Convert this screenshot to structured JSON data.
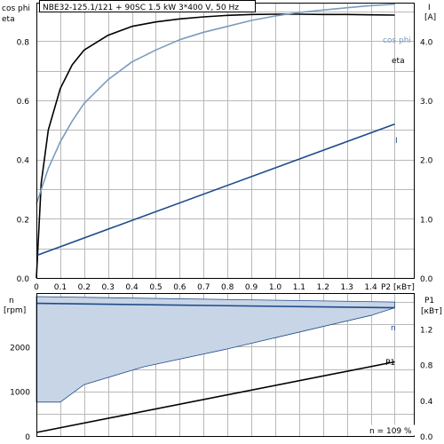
{
  "title": "NBE32-125.1/121 + 90SC   1.5 kW   3*400 V, 50 Hz",
  "colors": {
    "eta": "#000000",
    "cos_phi": "#7a9cbf",
    "current": "#1e4b8c",
    "speed_band_fill": "#c8d5e6",
    "speed_band_edge": "#1e4b8c",
    "p1": "#000000",
    "grid": "#b9b9b9"
  },
  "footer_note": "n = 109 %",
  "chart_data": [
    {
      "type": "line",
      "name": "top-panel",
      "left_axis": {
        "label_lines": [
          "cos phi",
          "eta"
        ],
        "ticks": [
          "0.0",
          "0.2",
          "0.4",
          "0.6",
          "0.8"
        ],
        "ylim": [
          0,
          0.93
        ]
      },
      "right_axis": {
        "label_lines": [
          "I",
          "[A]"
        ],
        "ticks": [
          "0.0",
          "1.0",
          "2.0",
          "3.0",
          "4.0"
        ],
        "ylim": [
          0,
          4.65
        ]
      },
      "x_axis": {
        "ticks": [
          "0",
          "0.1",
          "0.2",
          "0.3",
          "0.4",
          "0.5",
          "0.6",
          "0.7",
          "0.8",
          "0.9",
          "1.0",
          "1.1",
          "1.2",
          "1.3",
          "1.4"
        ],
        "end_label": "P2 [кВт]",
        "xlim": [
          0,
          1.58
        ]
      },
      "series": [
        {
          "name": "eta",
          "axis": "left",
          "x": [
            0,
            0.02,
            0.05,
            0.1,
            0.15,
            0.2,
            0.3,
            0.4,
            0.5,
            0.6,
            0.7,
            0.8,
            0.9,
            1.0,
            1.1,
            1.2,
            1.3,
            1.4,
            1.5
          ],
          "y": [
            0.0,
            0.32,
            0.5,
            0.64,
            0.72,
            0.77,
            0.82,
            0.85,
            0.865,
            0.875,
            0.882,
            0.887,
            0.89,
            0.891,
            0.891,
            0.89,
            0.89,
            0.889,
            0.888
          ]
        },
        {
          "name": "cos phi",
          "axis": "left",
          "x": [
            0,
            0.05,
            0.1,
            0.15,
            0.2,
            0.3,
            0.4,
            0.5,
            0.6,
            0.7,
            0.8,
            0.9,
            1.0,
            1.1,
            1.2,
            1.3,
            1.4,
            1.5
          ],
          "y": [
            0.25,
            0.37,
            0.46,
            0.53,
            0.59,
            0.67,
            0.73,
            0.77,
            0.805,
            0.83,
            0.85,
            0.87,
            0.885,
            0.897,
            0.905,
            0.913,
            0.92,
            0.925
          ]
        },
        {
          "name": "I",
          "axis": "right",
          "x": [
            0,
            1.5
          ],
          "y": [
            0.38,
            2.6
          ]
        }
      ]
    },
    {
      "type": "line",
      "name": "bottom-panel",
      "left_axis": {
        "label_lines": [
          "n",
          "[rpm]"
        ],
        "ticks": [
          "0",
          "1000",
          "2000"
        ],
        "ylim": [
          0,
          3200
        ]
      },
      "right_axis": {
        "label_lines": [
          "P1",
          "[кВт]"
        ],
        "ticks": [
          "0.0",
          "0.4",
          "0.8",
          "1.2"
        ],
        "ylim": [
          0,
          1.6
        ]
      },
      "xlim": [
        0,
        1.58
      ],
      "series": [
        {
          "name": "n",
          "axis": "left",
          "x": [
            0,
            1.5
          ],
          "y": [
            2970,
            2870
          ]
        },
        {
          "name": "n band",
          "axis": "left",
          "upper": {
            "x": [
              0,
              1.5
            ],
            "y": [
              3120,
              3000
            ]
          },
          "lower": {
            "x": [
              0,
              0.1,
              0.2,
              0.45,
              0.8,
              1.0,
              1.2,
              1.4,
              1.5
            ],
            "y": [
              760,
              760,
              1150,
              1550,
              1950,
              2200,
              2450,
              2700,
              2870
            ]
          }
        },
        {
          "name": "P1",
          "axis": "right",
          "x": [
            0,
            1.5
          ],
          "y": [
            0.04,
            0.83
          ]
        }
      ]
    }
  ]
}
